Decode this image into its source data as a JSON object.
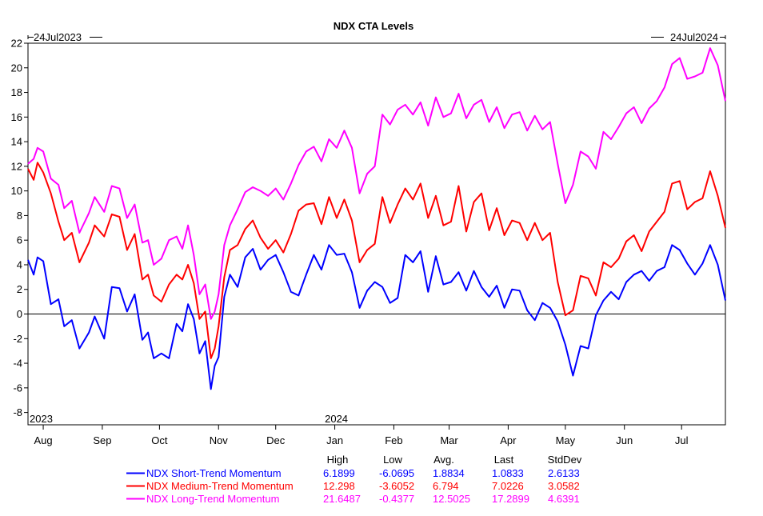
{
  "chart_data": {
    "type": "line",
    "title": "NDX CTA Levels",
    "range_start_label": "24Jul2023",
    "range_end_label": "24Jul2024",
    "year_labels": [
      {
        "label": "2023",
        "x": 0
      },
      {
        "label": "2024",
        "x": 161
      }
    ],
    "xlim": [
      0,
      366
    ],
    "ylim": [
      -9,
      22
    ],
    "y_ticks": [
      22,
      20,
      18,
      16,
      14,
      12,
      10,
      8,
      6,
      4,
      2,
      0,
      -2,
      -4,
      -6,
      -8
    ],
    "month_ticks": [
      {
        "label": "Aug",
        "x": 8
      },
      {
        "label": "Sep",
        "x": 39
      },
      {
        "label": "Oct",
        "x": 69
      },
      {
        "label": "Nov",
        "x": 100
      },
      {
        "label": "Dec",
        "x": 130
      },
      {
        "label": "Jan",
        "x": 161
      },
      {
        "label": "Feb",
        "x": 192
      },
      {
        "label": "Mar",
        "x": 221
      },
      {
        "label": "Apr",
        "x": 252
      },
      {
        "label": "May",
        "x": 282
      },
      {
        "label": "Jun",
        "x": 313
      },
      {
        "label": "Jul",
        "x": 343
      }
    ],
    "zero_line": 0,
    "stats_headers": [
      "High",
      "Low",
      "Avg.",
      "Last",
      "StdDev"
    ],
    "series": [
      {
        "name": "NDX Short-Trend Momentum",
        "color": "#0000ff",
        "stats": [
          "6.1899",
          "-6.0695",
          "1.8834",
          "1.0833",
          "2.6133"
        ],
        "x": [
          0,
          3,
          5,
          8,
          12,
          16,
          19,
          23,
          27,
          32,
          35,
          40,
          44,
          48,
          52,
          56,
          60,
          63,
          66,
          70,
          74,
          78,
          81,
          84,
          87,
          90,
          93,
          96,
          98,
          100,
          103,
          106,
          110,
          114,
          118,
          122,
          126,
          130,
          134,
          138,
          142,
          146,
          150,
          154,
          158,
          162,
          166,
          170,
          174,
          178,
          182,
          186,
          190,
          194,
          198,
          202,
          206,
          210,
          214,
          218,
          222,
          226,
          230,
          234,
          238,
          242,
          246,
          250,
          254,
          258,
          262,
          266,
          270,
          274,
          278,
          282,
          286,
          290,
          294,
          298,
          302,
          306,
          310,
          314,
          318,
          322,
          326,
          330,
          334,
          338,
          342,
          346,
          350,
          354,
          358,
          362,
          366
        ],
        "y": [
          4.4,
          3.2,
          4.6,
          4.3,
          0.8,
          1.2,
          -1.0,
          -0.5,
          -2.8,
          -1.5,
          -0.2,
          -2.0,
          2.2,
          2.1,
          0.2,
          1.6,
          -2.1,
          -1.5,
          -3.6,
          -3.2,
          -3.6,
          -0.8,
          -1.4,
          0.8,
          -0.4,
          -3.2,
          -2.2,
          -6.1,
          -4.2,
          -3.5,
          1.4,
          3.2,
          2.2,
          4.6,
          5.3,
          3.6,
          4.4,
          4.8,
          3.4,
          1.8,
          1.5,
          3.2,
          4.8,
          3.6,
          5.6,
          4.8,
          4.9,
          3.4,
          0.5,
          1.9,
          2.6,
          2.2,
          0.9,
          1.3,
          4.8,
          4.2,
          5.1,
          1.8,
          4.7,
          2.4,
          2.6,
          3.4,
          1.9,
          3.5,
          2.2,
          1.4,
          2.3,
          0.5,
          2.0,
          1.9,
          0.3,
          -0.5,
          0.9,
          0.5,
          -0.6,
          -2.5,
          -5.0,
          -2.6,
          -2.8,
          -0.1,
          1.1,
          1.8,
          1.2,
          2.6,
          3.2,
          3.5,
          2.7,
          3.5,
          3.8,
          5.6,
          5.2,
          4.1,
          3.2,
          4.1,
          5.6,
          4.0,
          1.1
        ]
      },
      {
        "name": "NDX Medium-Trend Momentum",
        "color": "#ff0000",
        "stats": [
          "12.298",
          "-3.6052",
          "6.794",
          "7.0226",
          "3.0582"
        ],
        "x": [
          0,
          3,
          5,
          8,
          12,
          16,
          19,
          23,
          27,
          32,
          35,
          40,
          44,
          48,
          52,
          56,
          60,
          63,
          66,
          70,
          74,
          78,
          81,
          84,
          87,
          90,
          93,
          96,
          98,
          100,
          103,
          106,
          110,
          114,
          118,
          122,
          126,
          130,
          134,
          138,
          142,
          146,
          150,
          154,
          158,
          162,
          166,
          170,
          174,
          178,
          182,
          186,
          190,
          194,
          198,
          202,
          206,
          210,
          214,
          218,
          222,
          226,
          230,
          234,
          238,
          242,
          246,
          250,
          254,
          258,
          262,
          266,
          270,
          274,
          278,
          282,
          286,
          290,
          294,
          298,
          302,
          306,
          310,
          314,
          318,
          322,
          326,
          330,
          334,
          338,
          342,
          346,
          350,
          354,
          358,
          362,
          366
        ],
        "y": [
          11.8,
          10.9,
          12.3,
          11.5,
          9.8,
          7.5,
          6.0,
          6.6,
          4.2,
          5.8,
          7.2,
          6.3,
          8.1,
          7.9,
          5.2,
          6.5,
          2.8,
          3.2,
          1.5,
          1.0,
          2.4,
          3.2,
          2.8,
          4.0,
          2.5,
          -0.4,
          0.2,
          -3.6,
          -2.8,
          -1.0,
          3.0,
          5.2,
          5.6,
          6.9,
          7.6,
          6.2,
          5.3,
          6.0,
          5.0,
          6.5,
          8.4,
          8.9,
          9.0,
          7.3,
          9.5,
          7.8,
          9.3,
          7.6,
          4.2,
          5.2,
          5.7,
          9.5,
          7.4,
          8.9,
          10.2,
          9.3,
          10.6,
          7.8,
          9.6,
          7.2,
          7.5,
          10.4,
          6.7,
          9.1,
          9.8,
          6.8,
          8.6,
          6.4,
          7.6,
          7.4,
          6.0,
          7.4,
          6.0,
          6.6,
          2.6,
          -0.1,
          0.3,
          3.1,
          2.9,
          1.5,
          4.2,
          3.8,
          4.5,
          5.9,
          6.4,
          5.1,
          6.7,
          7.5,
          8.3,
          10.6,
          10.8,
          8.5,
          9.1,
          9.4,
          11.6,
          9.6,
          7.0
        ]
      },
      {
        "name": "NDX Long-Trend Momentum",
        "color": "#ff00ff",
        "stats": [
          "21.6487",
          "-0.4377",
          "12.5025",
          "17.2899",
          "4.6391"
        ],
        "x": [
          0,
          3,
          5,
          8,
          12,
          16,
          19,
          23,
          27,
          32,
          35,
          40,
          44,
          48,
          52,
          56,
          60,
          63,
          66,
          70,
          74,
          78,
          81,
          84,
          87,
          90,
          93,
          96,
          98,
          100,
          103,
          106,
          110,
          114,
          118,
          122,
          126,
          130,
          134,
          138,
          142,
          146,
          150,
          154,
          158,
          162,
          166,
          170,
          174,
          178,
          182,
          186,
          190,
          194,
          198,
          202,
          206,
          210,
          214,
          218,
          222,
          226,
          230,
          234,
          238,
          242,
          246,
          250,
          254,
          258,
          262,
          266,
          270,
          274,
          278,
          282,
          286,
          290,
          294,
          298,
          302,
          306,
          310,
          314,
          318,
          322,
          326,
          330,
          334,
          338,
          342,
          346,
          350,
          354,
          358,
          362,
          366
        ],
        "y": [
          12.2,
          12.6,
          13.5,
          13.2,
          11.0,
          10.5,
          8.6,
          9.2,
          6.6,
          8.2,
          9.5,
          8.3,
          10.4,
          10.2,
          7.8,
          8.9,
          5.8,
          6.0,
          4.0,
          4.5,
          6.0,
          6.3,
          5.3,
          7.2,
          4.8,
          1.6,
          2.4,
          -0.4,
          0.2,
          1.6,
          5.6,
          7.2,
          8.5,
          9.9,
          10.3,
          10.0,
          9.6,
          10.2,
          9.3,
          10.6,
          12.1,
          13.2,
          13.6,
          12.4,
          14.2,
          13.5,
          14.9,
          13.5,
          9.8,
          11.4,
          12.0,
          16.2,
          15.4,
          16.6,
          17.0,
          16.2,
          17.2,
          15.3,
          17.6,
          16.0,
          16.3,
          17.9,
          15.9,
          17.0,
          17.4,
          15.6,
          16.8,
          15.1,
          16.2,
          16.4,
          14.9,
          16.1,
          15.0,
          15.6,
          12.2,
          9.0,
          10.5,
          13.2,
          12.8,
          11.8,
          14.8,
          14.2,
          15.2,
          16.3,
          16.8,
          15.5,
          16.7,
          17.3,
          18.4,
          20.3,
          20.8,
          19.1,
          19.3,
          19.6,
          21.6,
          20.2,
          17.3
        ]
      }
    ]
  }
}
